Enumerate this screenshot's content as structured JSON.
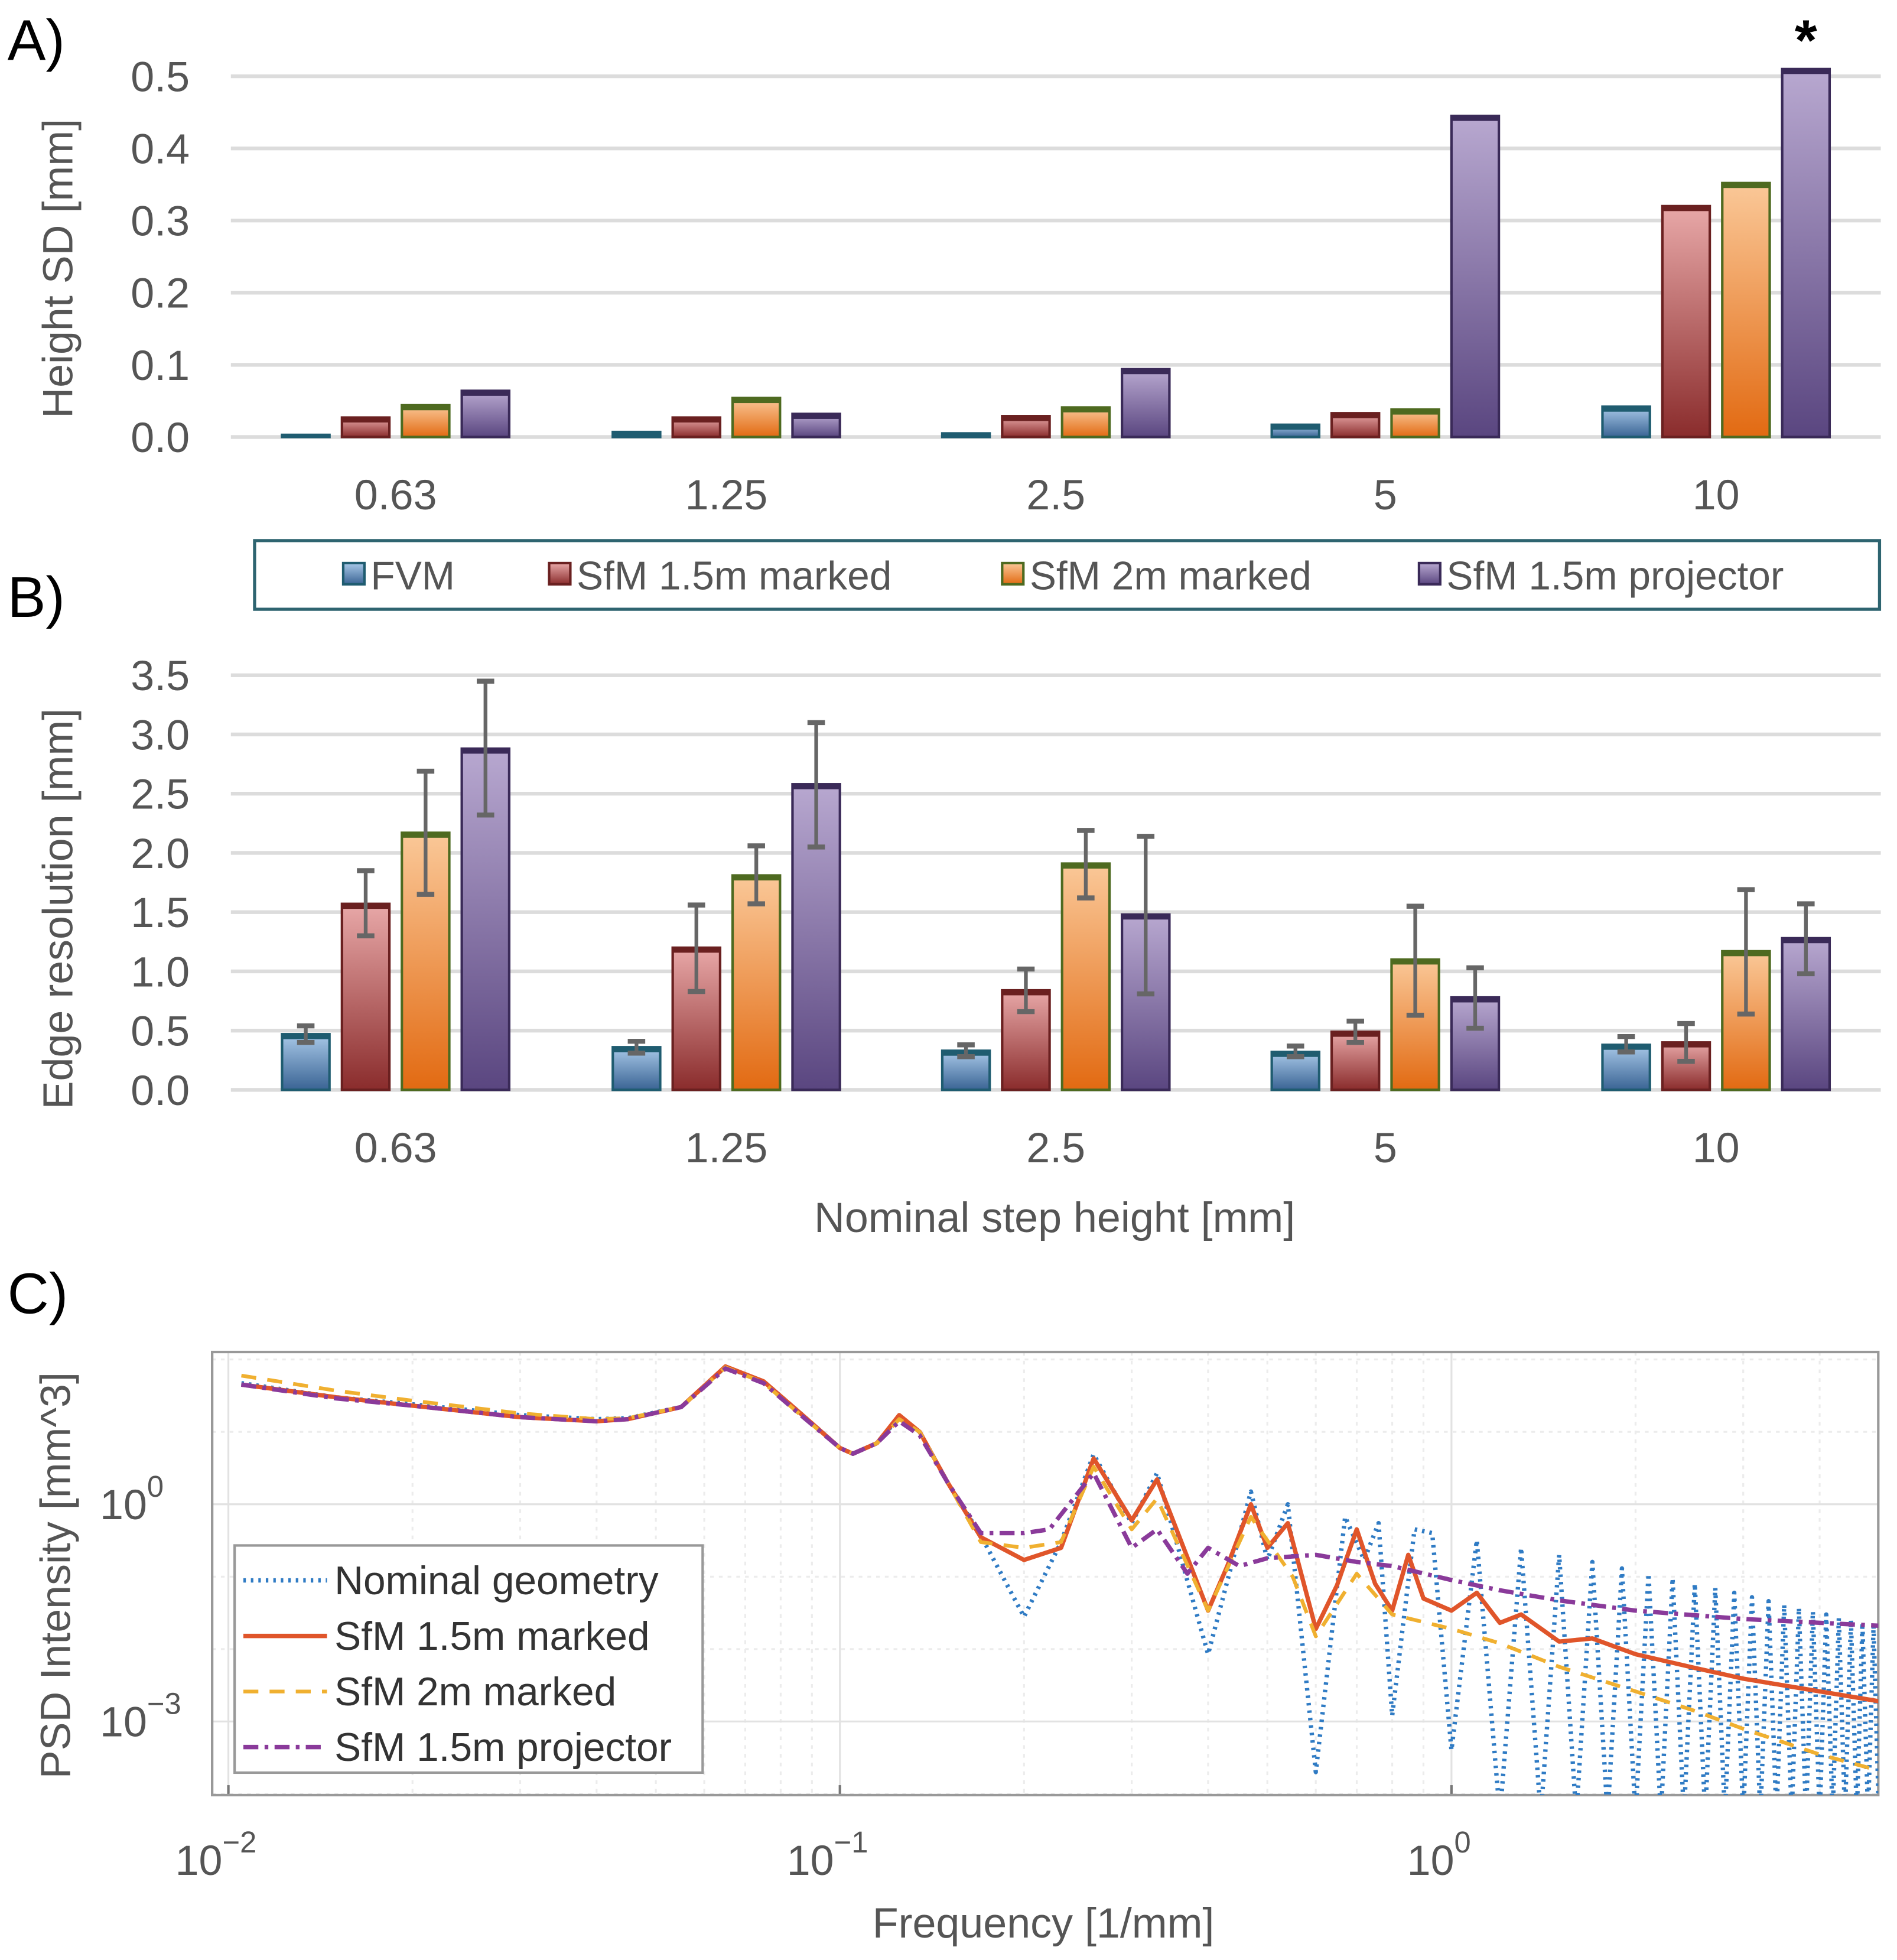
{
  "panel_labels": [
    "A)",
    "B)",
    "C)"
  ],
  "colors": {
    "FVM": "#4a7fb0",
    "SfM 1.5m marked": "#b0484a",
    "SfM 2m marked": "#ee8a3a",
    "SfM 1.5m projector": "#7f6a9c"
  },
  "legend_bars": [
    "FVM",
    "SfM 1.5m marked",
    "SfM 2m marked",
    "SfM 1.5m projector"
  ],
  "chart_data": [
    {
      "type": "bar",
      "ylabel": "Height SD [mm]",
      "xlabel": "",
      "categories": [
        "0.63",
        "1.25",
        "2.5",
        "5",
        "10"
      ],
      "ylim": [
        0,
        0.5
      ],
      "yticks": [
        "0.0",
        "0.1",
        "0.2",
        "0.3",
        "0.4",
        "0.5"
      ],
      "grid": true,
      "annotation": "*",
      "series": [
        {
          "name": "FVM",
          "values": [
            0.003,
            0.007,
            0.005,
            0.017,
            0.042
          ]
        },
        {
          "name": "SfM 1.5m marked",
          "values": [
            0.027,
            0.027,
            0.029,
            0.033,
            0.32
          ]
        },
        {
          "name": "SfM 2m marked",
          "values": [
            0.044,
            0.054,
            0.041,
            0.038,
            0.352
          ]
        },
        {
          "name": "SfM 1.5m projector",
          "values": [
            0.064,
            0.032,
            0.094,
            0.445,
            0.51
          ]
        }
      ]
    },
    {
      "type": "bar",
      "ylabel": "Edge resolution [mm]",
      "xlabel": "Nominal step height [mm]",
      "categories": [
        "0.63",
        "1.25",
        "2.5",
        "5",
        "10"
      ],
      "ylim": [
        0,
        3.5
      ],
      "yticks": [
        "0.0",
        "0.5",
        "1.0",
        "1.5",
        "2.0",
        "2.5",
        "3.0",
        "3.5"
      ],
      "grid": true,
      "legend": "top",
      "series": [
        {
          "name": "FVM",
          "values": [
            0.47,
            0.36,
            0.33,
            0.32,
            0.38
          ],
          "err_low": [
            0.4,
            0.31,
            0.28,
            0.28,
            0.32
          ],
          "err_high": [
            0.54,
            0.41,
            0.38,
            0.37,
            0.45
          ]
        },
        {
          "name": "SfM 1.5m marked",
          "values": [
            1.57,
            1.2,
            0.84,
            0.49,
            0.4
          ],
          "err_low": [
            1.3,
            0.83,
            0.66,
            0.4,
            0.24
          ],
          "err_high": [
            1.85,
            1.56,
            1.02,
            0.58,
            0.56
          ]
        },
        {
          "name": "SfM 2m marked",
          "values": [
            2.17,
            1.81,
            1.91,
            1.1,
            1.17
          ],
          "err_low": [
            1.65,
            1.57,
            1.62,
            0.63,
            0.64
          ],
          "err_high": [
            2.69,
            2.06,
            2.19,
            1.55,
            1.69
          ]
        },
        {
          "name": "SfM 1.5m projector",
          "values": [
            2.88,
            2.58,
            1.48,
            0.78,
            1.28
          ],
          "err_low": [
            2.32,
            2.05,
            0.81,
            0.52,
            0.98
          ],
          "err_high": [
            3.45,
            3.1,
            2.14,
            1.03,
            1.57
          ]
        }
      ]
    },
    {
      "type": "line",
      "xscale": "log",
      "yscale": "log",
      "xlabel": "Frequency [1/mm]",
      "ylabel": "PSD Intensity [mm^3]",
      "xlim": [
        0.0094,
        5.1
      ],
      "ylim": [
        0.0001,
        120
      ],
      "xticks": [
        {
          "value": 0.01,
          "base": "10",
          "exp": "−2"
        },
        {
          "value": 0.1,
          "base": "10",
          "exp": "−1"
        },
        {
          "value": 1,
          "base": "10",
          "exp": "0"
        }
      ],
      "yticks": [
        {
          "value": 1,
          "base": "10",
          "exp": "0"
        },
        {
          "value": 0.001,
          "base": "10",
          "exp": "−3"
        }
      ],
      "grid": true,
      "legend": "bottom-left",
      "series": [
        {
          "name": "Nominal geometry",
          "color": "#2f7bc4",
          "style": "dotted",
          "x": [
            0.0105,
            0.015,
            0.02,
            0.03,
            0.04,
            0.045,
            0.055,
            0.065,
            0.075,
            0.085,
            0.1,
            0.105,
            0.115,
            0.125,
            0.135,
            0.15,
            0.17,
            0.2,
            0.23,
            0.26,
            0.3,
            0.33,
            0.4,
            0.47,
            0.5,
            0.54,
            0.6,
            0.67,
            0.72,
            0.76,
            0.8,
            0.87,
            0.93,
            1.0,
            1.1,
            1.2,
            1.3,
            1.4,
            1.5,
            1.6,
            1.7,
            1.8,
            1.9,
            2.0,
            2.1,
            2.2,
            2.3,
            2.4,
            2.5,
            2.6,
            2.7,
            2.8,
            2.9,
            3.0,
            3.1,
            3.2,
            3.3,
            3.4,
            3.5,
            3.6,
            3.7,
            3.8,
            3.9,
            4.0,
            4.1,
            4.2,
            4.3,
            4.4,
            4.5,
            4.6,
            4.7,
            4.8,
            4.9,
            5.0
          ],
          "y": [
            47,
            30,
            24,
            17,
            15,
            15.5,
            22,
            79,
            50,
            20,
            6,
            5,
            7,
            16,
            10,
            2,
            0.37,
            0.028,
            0.3,
            4.9,
            0.55,
            2.7,
            0.0085,
            1.5,
            0.17,
            1.0,
            0.0002,
            0.67,
            0.17,
            0.55,
            0.0012,
            0.45,
            0.4,
            0.0004,
            0.32,
            5e-05,
            0.25,
            5e-05,
            0.2,
            5e-05,
            0.16,
            5e-05,
            0.13,
            5e-05,
            0.11,
            5e-05,
            0.095,
            5e-05,
            0.08,
            5e-05,
            0.07,
            5e-05,
            0.06,
            5e-05,
            0.052,
            5e-05,
            0.046,
            5e-05,
            0.041,
            5e-05,
            0.037,
            5e-05,
            0.033,
            5e-05,
            0.03,
            5e-05,
            0.027,
            5e-05,
            0.025,
            5e-05,
            0.023,
            5e-05,
            0.021,
            5e-05
          ]
        },
        {
          "name": "SfM 1.5m marked",
          "color": "#e0552a",
          "style": "solid",
          "x": [
            0.0105,
            0.015,
            0.02,
            0.03,
            0.04,
            0.045,
            0.055,
            0.065,
            0.075,
            0.085,
            0.1,
            0.105,
            0.115,
            0.125,
            0.135,
            0.15,
            0.17,
            0.2,
            0.23,
            0.26,
            0.3,
            0.33,
            0.4,
            0.43,
            0.47,
            0.5,
            0.54,
            0.6,
            0.65,
            0.7,
            0.75,
            0.8,
            0.85,
            0.9,
            1.0,
            1.1,
            1.2,
            1.3,
            1.5,
            1.7,
            2.0,
            2.5,
            3.0,
            4.0,
            5.0
          ],
          "y": [
            45,
            30,
            23,
            16,
            14,
            15,
            22,
            80,
            50,
            20,
            6,
            5,
            7,
            17,
            10,
            2,
            0.35,
            0.17,
            0.25,
            4.3,
            0.6,
            2.2,
            0.034,
            0.14,
            1.0,
            0.25,
            0.55,
            0.019,
            0.076,
            0.45,
            0.08,
            0.034,
            0.2,
            0.05,
            0.034,
            0.06,
            0.023,
            0.03,
            0.0127,
            0.014,
            0.0085,
            0.0055,
            0.0039,
            0.0026,
            0.0019
          ]
        },
        {
          "name": "SfM 2m marked",
          "color": "#f0b030",
          "style": "dashed",
          "x": [
            0.0105,
            0.015,
            0.02,
            0.03,
            0.04,
            0.045,
            0.055,
            0.065,
            0.075,
            0.085,
            0.1,
            0.105,
            0.115,
            0.125,
            0.135,
            0.15,
            0.17,
            0.2,
            0.23,
            0.26,
            0.3,
            0.33,
            0.4,
            0.47,
            0.55,
            0.6,
            0.7,
            0.8,
            1.0,
            1.2,
            1.5,
            2.0,
            2.5,
            3.0,
            4.0,
            5.0
          ],
          "y": [
            60,
            37,
            27,
            18,
            15,
            15.5,
            22,
            78,
            48,
            19,
            6,
            5,
            7,
            15,
            10,
            2,
            0.3,
            0.25,
            0.3,
            3.3,
            0.45,
            1.2,
            0.034,
            0.67,
            0.1,
            0.015,
            0.11,
            0.03,
            0.019,
            0.012,
            0.0057,
            0.0026,
            0.0014,
            0.00079,
            0.00035,
            0.00021
          ]
        },
        {
          "name": "SfM 1.5m projector",
          "color": "#8a3a9a",
          "style": "dashdot",
          "x": [
            0.0105,
            0.015,
            0.02,
            0.03,
            0.04,
            0.045,
            0.055,
            0.065,
            0.075,
            0.085,
            0.1,
            0.105,
            0.115,
            0.125,
            0.135,
            0.15,
            0.17,
            0.2,
            0.22,
            0.26,
            0.3,
            0.33,
            0.37,
            0.4,
            0.45,
            0.5,
            0.6,
            0.7,
            0.8,
            1.0,
            1.2,
            1.5,
            2.0,
            3.0,
            5.0
          ],
          "y": [
            45,
            29,
            23,
            16,
            14,
            15,
            22,
            75,
            47,
            19,
            6,
            5,
            7,
            14,
            9,
            2,
            0.4,
            0.4,
            0.45,
            2.7,
            0.25,
            0.45,
            0.11,
            0.25,
            0.14,
            0.18,
            0.2,
            0.16,
            0.14,
            0.09,
            0.065,
            0.047,
            0.034,
            0.026,
            0.021
          ]
        }
      ]
    }
  ]
}
